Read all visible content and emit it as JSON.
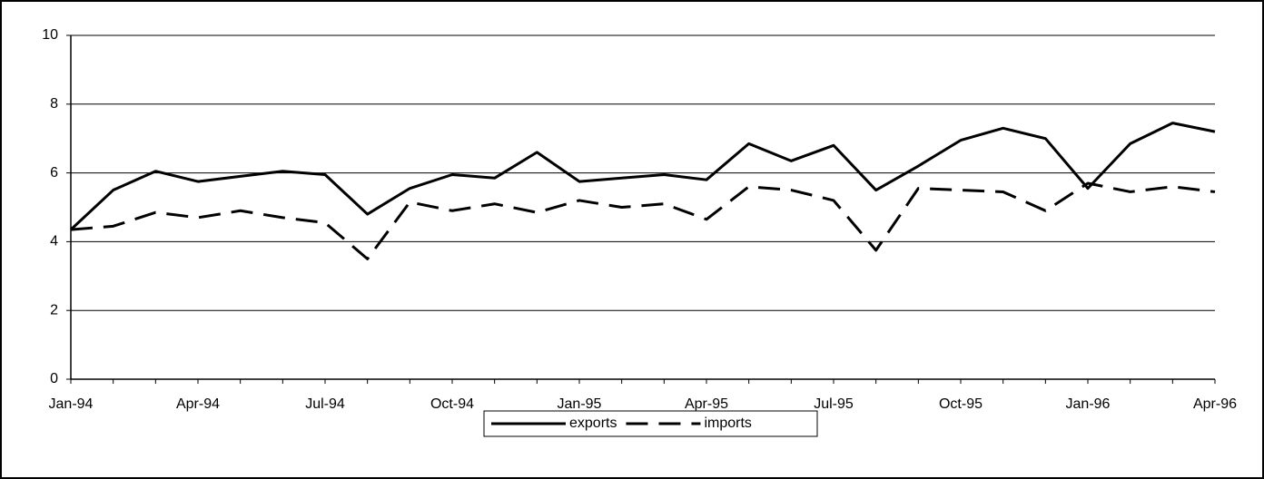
{
  "chart_data": {
    "type": "line",
    "categories": [
      "Jan-94",
      null,
      null,
      "Apr-94",
      null,
      null,
      "Jul-94",
      null,
      null,
      "Oct-94",
      null,
      null,
      "Jan-95",
      null,
      null,
      "Apr-95",
      null,
      null,
      "Jul-95",
      null,
      null,
      "Oct-95",
      null,
      null,
      "Jan-96",
      null,
      null,
      "Apr-96"
    ],
    "series": [
      {
        "name": "exports",
        "color": "#000000",
        "dash": false,
        "values": [
          4.35,
          5.5,
          6.05,
          5.75,
          5.9,
          6.05,
          5.95,
          4.8,
          5.55,
          5.95,
          5.85,
          6.6,
          5.75,
          5.85,
          5.95,
          5.8,
          6.85,
          6.35,
          6.8,
          5.5,
          6.2,
          6.95,
          7.3,
          7.0,
          5.55,
          6.85,
          7.45,
          7.2
        ]
      },
      {
        "name": "imports",
        "color": "#000000",
        "dash": true,
        "values": [
          4.35,
          4.45,
          4.85,
          4.7,
          4.9,
          4.7,
          4.55,
          3.5,
          5.15,
          4.9,
          5.1,
          4.85,
          5.2,
          5.0,
          5.1,
          4.65,
          5.6,
          5.5,
          5.2,
          3.75,
          5.55,
          5.5,
          5.45,
          4.9,
          5.7,
          5.45,
          5.6,
          5.45
        ]
      }
    ],
    "ylim": [
      0,
      10
    ],
    "yticks": [
      0,
      2,
      4,
      6,
      8,
      10
    ],
    "grid": true,
    "legend": "bottom"
  }
}
